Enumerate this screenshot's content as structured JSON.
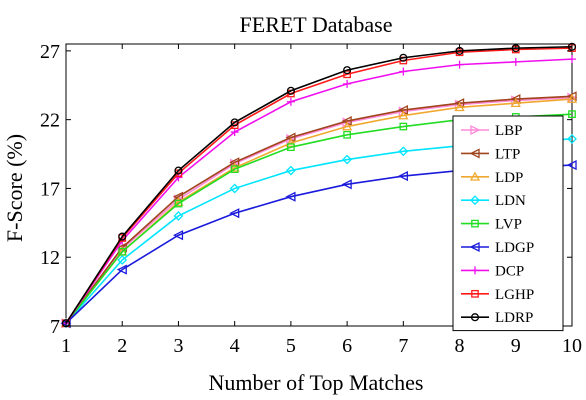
{
  "chart_data": {
    "type": "line",
    "title": "FERET Database",
    "xlabel": "Number of Top Matches",
    "ylabel": "F-Score (%)",
    "x": [
      1,
      2,
      3,
      4,
      5,
      6,
      7,
      8,
      9,
      10
    ],
    "xlim": [
      1,
      10
    ],
    "ylim": [
      7,
      27.5
    ],
    "xticks": [
      "1",
      "2",
      "3",
      "4",
      "5",
      "6",
      "7",
      "8",
      "9",
      "10"
    ],
    "yticks": [
      7,
      12,
      17,
      22,
      27
    ],
    "ytick_labels": [
      "7",
      "12",
      "17",
      "22",
      "27"
    ],
    "grid": false,
    "legend_position": "right",
    "series": [
      {
        "name": "LBP",
        "color": "#ff8ad8",
        "marker": "triangle-right",
        "values": [
          7.2,
          12.6,
          16.2,
          18.8,
          20.6,
          21.8,
          22.6,
          23.1,
          23.4,
          23.6
        ]
      },
      {
        "name": "LTP",
        "color": "#a0441c",
        "marker": "triangle-left",
        "values": [
          7.2,
          12.7,
          16.4,
          18.9,
          20.7,
          21.9,
          22.7,
          23.2,
          23.5,
          23.7
        ]
      },
      {
        "name": "LDP",
        "color": "#f0a830",
        "marker": "triangle-up",
        "values": [
          7.2,
          12.4,
          16.0,
          18.5,
          20.3,
          21.5,
          22.3,
          22.9,
          23.2,
          23.5
        ]
      },
      {
        "name": "LDN",
        "color": "#00e5ff",
        "marker": "diamond",
        "values": [
          7.2,
          11.8,
          15.0,
          17.0,
          18.3,
          19.1,
          19.7,
          20.1,
          20.4,
          20.6
        ]
      },
      {
        "name": "LVP",
        "color": "#22dd22",
        "marker": "square",
        "values": [
          7.2,
          12.4,
          15.9,
          18.4,
          20.0,
          20.9,
          21.5,
          22.0,
          22.2,
          22.4
        ]
      },
      {
        "name": "LDGP",
        "color": "#1a1adc",
        "marker": "triangle-left",
        "values": [
          7.2,
          11.1,
          13.6,
          15.2,
          16.4,
          17.3,
          17.9,
          18.3,
          18.5,
          18.7
        ]
      },
      {
        "name": "DCP",
        "color": "#f00ff0",
        "marker": "plus",
        "values": [
          7.2,
          13.2,
          17.8,
          21.1,
          23.3,
          24.6,
          25.5,
          26.0,
          26.2,
          26.4
        ]
      },
      {
        "name": "LGHP",
        "color": "#ff1a1a",
        "marker": "square",
        "values": [
          7.2,
          13.4,
          18.1,
          21.6,
          23.9,
          25.3,
          26.3,
          26.9,
          27.1,
          27.2
        ]
      },
      {
        "name": "LDRP",
        "color": "#000000",
        "marker": "circle",
        "values": [
          7.2,
          13.5,
          18.3,
          21.8,
          24.1,
          25.6,
          26.5,
          27.0,
          27.2,
          27.3
        ]
      }
    ]
  }
}
